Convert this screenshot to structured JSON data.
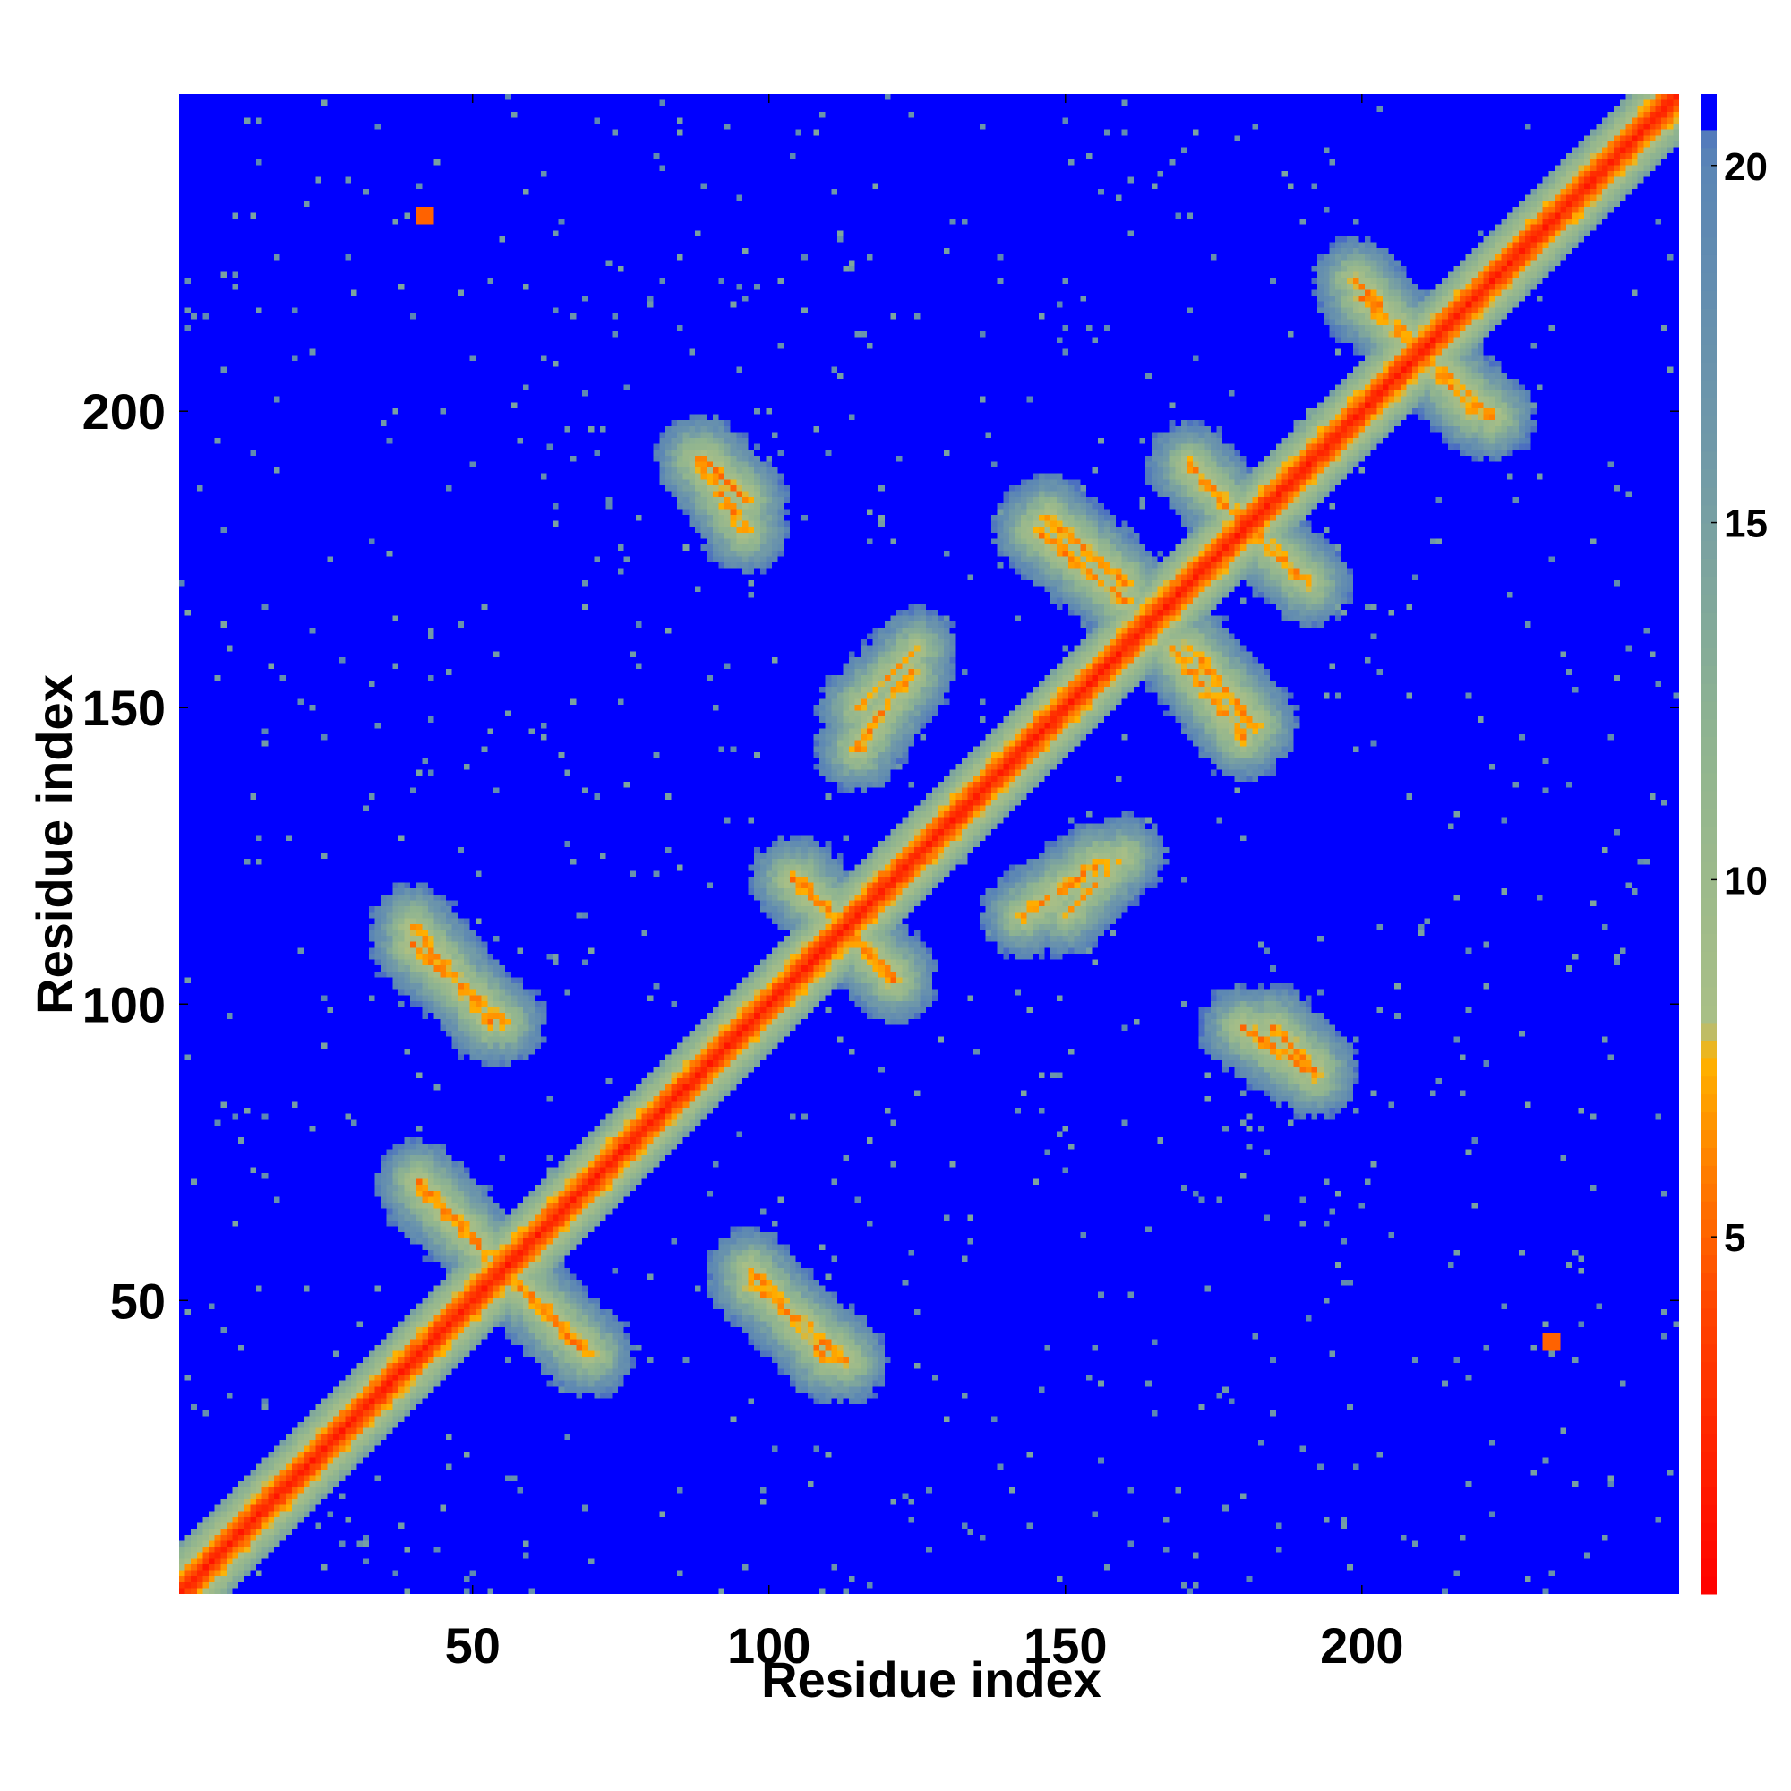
{
  "chart_data": {
    "type": "heatmap",
    "title": "",
    "xlabel": "Residue index",
    "ylabel": "Residue index",
    "n_residues": 253,
    "xlim": [
      1,
      253
    ],
    "ylim": [
      1,
      253
    ],
    "x_ticks": [
      50,
      100,
      150,
      200
    ],
    "y_ticks": [
      50,
      100,
      150,
      200
    ],
    "colorbar": {
      "range": [
        0,
        21
      ],
      "ticks": [
        5,
        10,
        15,
        20
      ],
      "scale": [
        {
          "value": 0,
          "color": "#ff0000"
        },
        {
          "value": 4,
          "color": "#ff4400"
        },
        {
          "value": 6,
          "color": "#ff8000"
        },
        {
          "value": 7.5,
          "color": "#ffb300"
        },
        {
          "value": 8,
          "color": "#a9bf86"
        },
        {
          "value": 12,
          "color": "#8fb490"
        },
        {
          "value": 16,
          "color": "#7099a8"
        },
        {
          "value": 20,
          "color": "#5a85b5"
        },
        {
          "value": 21,
          "color": "#0000ff"
        }
      ]
    },
    "description_features": {
      "diagonal": [
        [
          1,
          1
        ],
        [
          253,
          253
        ]
      ],
      "antiparallel_pairs": [
        {
          "from": [
            42,
            68
          ],
          "to": [
            70,
            41
          ],
          "distance": 5
        },
        {
          "from": [
            40,
            110
          ],
          "to": [
            55,
            97
          ],
          "distance": 5
        },
        {
          "from": [
            97,
            53
          ],
          "to": [
            113,
            40
          ],
          "distance": 5
        },
        {
          "from": [
            105,
            121
          ],
          "to": [
            121,
            104
          ],
          "distance": 5
        },
        {
          "from": [
            89,
            192
          ],
          "to": [
            96,
            185
          ],
          "distance": 5
        },
        {
          "from": [
            145,
            180
          ],
          "to": [
            160,
            168
          ],
          "distance": 5
        },
        {
          "from": [
            171,
            191
          ],
          "to": [
            181,
            180
          ],
          "distance": 5
        },
        {
          "from": [
            171,
            160
          ],
          "to": [
            182,
            147
          ],
          "distance": 5
        },
        {
          "from": [
            199,
            222
          ],
          "to": [
            219,
            200
          ],
          "distance": 5
        },
        {
          "from": [
            143,
            115
          ],
          "to": [
            156,
            124
          ],
          "distance": 5
        },
        {
          "from": [
            180,
            96
          ],
          "to": [
            192,
            88
          ],
          "distance": 5
        },
        {
          "from": [
            115,
            150
          ],
          "to": [
            125,
            160
          ],
          "distance": 6
        }
      ],
      "isolated_contacts": [
        {
          "x": 42,
          "y": 233
        },
        {
          "x": 232,
          "y": 43
        }
      ]
    }
  }
}
